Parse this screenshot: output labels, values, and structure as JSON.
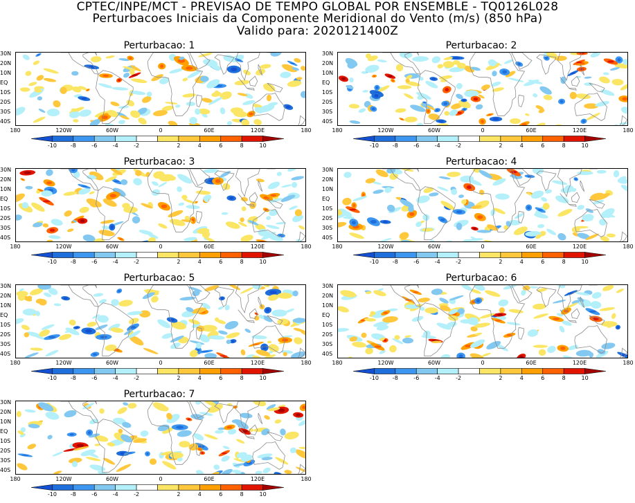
{
  "header": {
    "line1": "CPTEC/INPE/MCT - PREVISAO DE TEMPO GLOBAL POR ENSEMBLE - TQ0126L028",
    "line2": "Perturbacoes Iniciais da Componente Meridional do Vento (m/s) (850 hPa)",
    "line3": "Valido para: 2020121400Z"
  },
  "lat_labels": [
    "30N",
    "20N",
    "10N",
    "EQ",
    "10S",
    "20S",
    "30S",
    "40S"
  ],
  "lon_labels": [
    "180",
    "120W",
    "60W",
    "0",
    "60E",
    "120E",
    "180"
  ],
  "colorbar": {
    "labels": [
      "-10",
      "-8",
      "-6",
      "-4",
      "-2",
      "2",
      "4",
      "6",
      "8",
      "10"
    ],
    "colors": [
      "#1450d2",
      "#1e6edc",
      "#3c96f0",
      "#82c8f0",
      "#b4f0fa",
      "#ffffff",
      "#fae664",
      "#ffc83c",
      "#ffa000",
      "#ff6000",
      "#e11400",
      "#a50000"
    ]
  },
  "panels": [
    {
      "title": "Perturbacao: 1"
    },
    {
      "title": "Perturbacao: 2"
    },
    {
      "title": "Perturbacao: 3"
    },
    {
      "title": "Perturbacao: 4"
    },
    {
      "title": "Perturbacao: 5"
    },
    {
      "title": "Perturbacao: 6"
    },
    {
      "title": "Perturbacao: 7"
    }
  ]
}
